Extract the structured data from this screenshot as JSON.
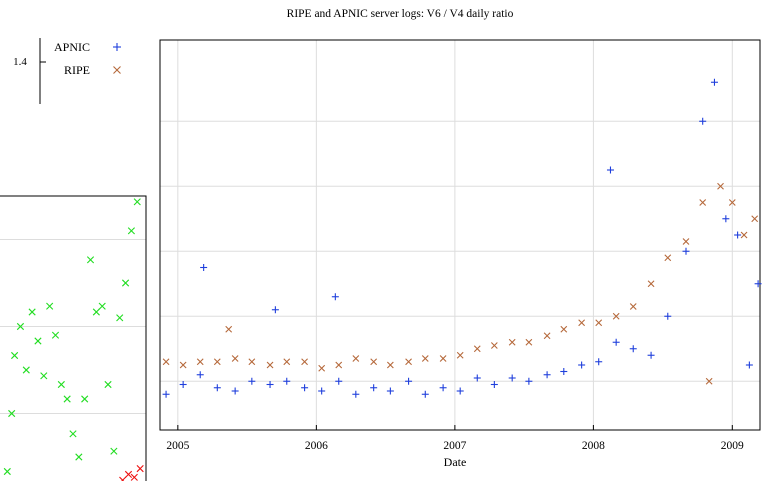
{
  "chart_data": [
    {
      "type": "scatter",
      "title": "RIPE and APNIC  server logs: V6 / V4 daily ratio",
      "xlabel": "Date",
      "ylabel": "",
      "x_ticks": [
        "2005",
        "2006",
        "2007",
        "2008",
        "2009"
      ],
      "xlim": [
        "2004-11-15",
        "2009-03-15"
      ],
      "y_ticks": [
        "1.4"
      ],
      "ylim": [
        0.35,
        1.55
      ],
      "grid": true,
      "legend_position": "top-left",
      "colors": {
        "APNIC": "#1f3fdc",
        "RIPE": "#b5683a"
      },
      "series": [
        {
          "name": "APNIC",
          "marker": "+",
          "points": [
            {
              "x": "2004-12-01",
              "y": 0.46
            },
            {
              "x": "2005-01-15",
              "y": 0.49
            },
            {
              "x": "2005-03-01",
              "y": 0.52
            },
            {
              "x": "2005-03-10",
              "y": 0.85
            },
            {
              "x": "2005-04-15",
              "y": 0.48
            },
            {
              "x": "2005-06-01",
              "y": 0.47
            },
            {
              "x": "2005-07-15",
              "y": 0.5
            },
            {
              "x": "2005-09-01",
              "y": 0.49
            },
            {
              "x": "2005-09-15",
              "y": 0.72
            },
            {
              "x": "2005-10-15",
              "y": 0.5
            },
            {
              "x": "2005-12-01",
              "y": 0.48
            },
            {
              "x": "2006-01-15",
              "y": 0.47
            },
            {
              "x": "2006-02-20",
              "y": 0.76
            },
            {
              "x": "2006-03-01",
              "y": 0.5
            },
            {
              "x": "2006-04-15",
              "y": 0.46
            },
            {
              "x": "2006-06-01",
              "y": 0.48
            },
            {
              "x": "2006-07-15",
              "y": 0.47
            },
            {
              "x": "2006-09-01",
              "y": 0.5
            },
            {
              "x": "2006-10-15",
              "y": 0.46
            },
            {
              "x": "2006-12-01",
              "y": 0.48
            },
            {
              "x": "2007-01-15",
              "y": 0.47
            },
            {
              "x": "2007-03-01",
              "y": 0.51
            },
            {
              "x": "2007-04-15",
              "y": 0.49
            },
            {
              "x": "2007-06-01",
              "y": 0.51
            },
            {
              "x": "2007-07-15",
              "y": 0.5
            },
            {
              "x": "2007-09-01",
              "y": 0.52
            },
            {
              "x": "2007-10-15",
              "y": 0.53
            },
            {
              "x": "2007-12-01",
              "y": 0.55
            },
            {
              "x": "2008-01-15",
              "y": 0.56
            },
            {
              "x": "2008-02-15",
              "y": 1.15
            },
            {
              "x": "2008-03-01",
              "y": 0.62
            },
            {
              "x": "2008-04-15",
              "y": 0.6
            },
            {
              "x": "2008-06-01",
              "y": 0.58
            },
            {
              "x": "2008-07-15",
              "y": 0.7
            },
            {
              "x": "2008-09-01",
              "y": 0.9
            },
            {
              "x": "2008-10-15",
              "y": 1.3
            },
            {
              "x": "2008-11-15",
              "y": 1.42
            },
            {
              "x": "2008-12-15",
              "y": 1.0
            },
            {
              "x": "2009-01-15",
              "y": 0.95
            },
            {
              "x": "2009-02-15",
              "y": 0.55
            },
            {
              "x": "2009-03-10",
              "y": 0.8
            }
          ]
        },
        {
          "name": "RIPE",
          "marker": "x",
          "points": [
            {
              "x": "2004-12-01",
              "y": 0.56
            },
            {
              "x": "2005-01-15",
              "y": 0.55
            },
            {
              "x": "2005-03-01",
              "y": 0.56
            },
            {
              "x": "2005-04-15",
              "y": 0.56
            },
            {
              "x": "2005-05-15",
              "y": 0.66
            },
            {
              "x": "2005-06-01",
              "y": 0.57
            },
            {
              "x": "2005-07-15",
              "y": 0.56
            },
            {
              "x": "2005-09-01",
              "y": 0.55
            },
            {
              "x": "2005-10-15",
              "y": 0.56
            },
            {
              "x": "2005-12-01",
              "y": 0.56
            },
            {
              "x": "2006-01-15",
              "y": 0.54
            },
            {
              "x": "2006-03-01",
              "y": 0.55
            },
            {
              "x": "2006-04-15",
              "y": 0.57
            },
            {
              "x": "2006-06-01",
              "y": 0.56
            },
            {
              "x": "2006-07-15",
              "y": 0.55
            },
            {
              "x": "2006-09-01",
              "y": 0.56
            },
            {
              "x": "2006-10-15",
              "y": 0.57
            },
            {
              "x": "2006-12-01",
              "y": 0.57
            },
            {
              "x": "2007-01-15",
              "y": 0.58
            },
            {
              "x": "2007-03-01",
              "y": 0.6
            },
            {
              "x": "2007-04-15",
              "y": 0.61
            },
            {
              "x": "2007-06-01",
              "y": 0.62
            },
            {
              "x": "2007-07-15",
              "y": 0.62
            },
            {
              "x": "2007-09-01",
              "y": 0.64
            },
            {
              "x": "2007-10-15",
              "y": 0.66
            },
            {
              "x": "2007-12-01",
              "y": 0.68
            },
            {
              "x": "2008-01-15",
              "y": 0.68
            },
            {
              "x": "2008-03-01",
              "y": 0.7
            },
            {
              "x": "2008-04-15",
              "y": 0.73
            },
            {
              "x": "2008-06-01",
              "y": 0.8
            },
            {
              "x": "2008-07-15",
              "y": 0.88
            },
            {
              "x": "2008-09-01",
              "y": 0.93
            },
            {
              "x": "2008-10-15",
              "y": 1.05
            },
            {
              "x": "2008-11-01",
              "y": 0.5
            },
            {
              "x": "2008-12-01",
              "y": 1.1
            },
            {
              "x": "2009-01-01",
              "y": 1.05
            },
            {
              "x": "2009-02-01",
              "y": 0.95
            },
            {
              "x": "2009-03-01",
              "y": 1.0
            }
          ]
        }
      ]
    },
    {
      "type": "scatter",
      "title": "",
      "xlabel": "",
      "ylabel": "",
      "grid": true,
      "note_visible": "partially visible inset at left edge, no readable tick labels",
      "colors": {
        "green": "#22dd22",
        "red": "#ee1111"
      },
      "series": [
        {
          "marker": "x",
          "color": "green",
          "points": [
            {
              "x": 0.05,
              "y": 0.05
            },
            {
              "x": 0.08,
              "y": 0.25
            },
            {
              "x": 0.1,
              "y": 0.45
            },
            {
              "x": 0.14,
              "y": 0.55
            },
            {
              "x": 0.18,
              "y": 0.4
            },
            {
              "x": 0.22,
              "y": 0.6
            },
            {
              "x": 0.26,
              "y": 0.5
            },
            {
              "x": 0.3,
              "y": 0.38
            },
            {
              "x": 0.34,
              "y": 0.62
            },
            {
              "x": 0.38,
              "y": 0.52
            },
            {
              "x": 0.42,
              "y": 0.35
            },
            {
              "x": 0.46,
              "y": 0.3
            },
            {
              "x": 0.5,
              "y": 0.18
            },
            {
              "x": 0.54,
              "y": 0.1
            },
            {
              "x": 0.58,
              "y": 0.3
            },
            {
              "x": 0.62,
              "y": 0.78
            },
            {
              "x": 0.66,
              "y": 0.6
            },
            {
              "x": 0.7,
              "y": 0.62
            },
            {
              "x": 0.74,
              "y": 0.35
            },
            {
              "x": 0.78,
              "y": 0.12
            },
            {
              "x": 0.82,
              "y": 0.58
            },
            {
              "x": 0.86,
              "y": 0.7
            },
            {
              "x": 0.9,
              "y": 0.88
            },
            {
              "x": 0.94,
              "y": 0.98
            }
          ]
        },
        {
          "marker": "x",
          "color": "red",
          "points": [
            {
              "x": 0.84,
              "y": 0.02
            },
            {
              "x": 0.88,
              "y": 0.04
            },
            {
              "x": 0.92,
              "y": 0.03
            },
            {
              "x": 0.96,
              "y": 0.06
            }
          ]
        }
      ]
    }
  ]
}
